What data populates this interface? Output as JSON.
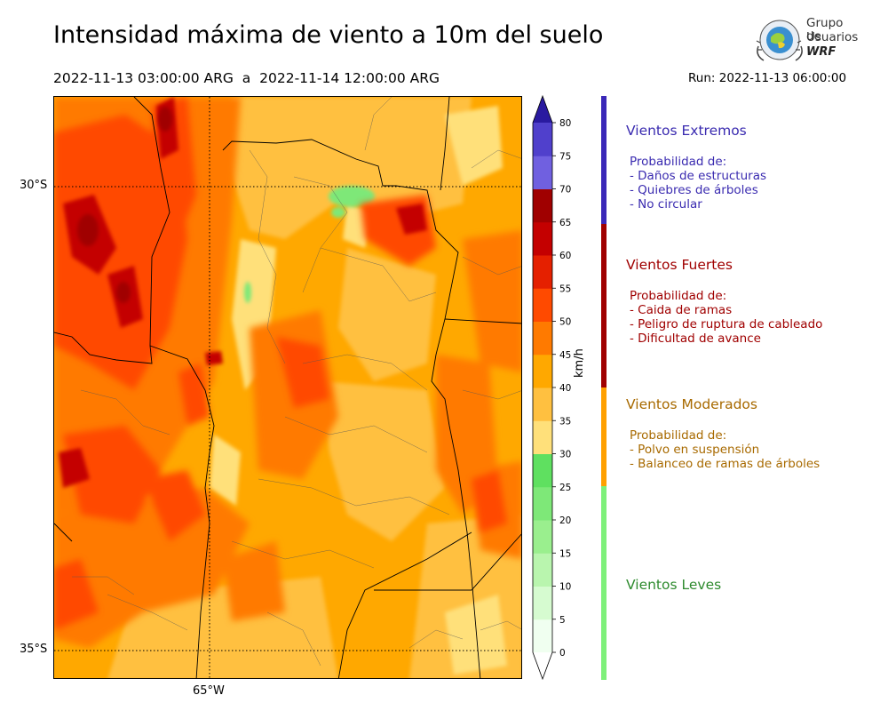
{
  "header": {
    "title": "Intensidad máxima de viento a 10m del suelo",
    "period": "2022-11-13 03:00:00 ARG  a  2022-11-14 12:00:00 ARG",
    "run": "Run: 2022-11-13 06:00:00"
  },
  "logo": {
    "line1": "Grupo de",
    "line2": "Usuarios",
    "line3": "WRF"
  },
  "map": {
    "lat_labels": [
      "30°S",
      "35°S"
    ],
    "lon_labels": [
      "65°W"
    ],
    "gridlines": {
      "lat": [
        -30,
        -35
      ],
      "lon": [
        -65
      ]
    }
  },
  "colorbar": {
    "unit": "km/h",
    "ticks": [
      "0",
      "5",
      "10",
      "15",
      "20",
      "25",
      "30",
      "35",
      "40",
      "45",
      "50",
      "55",
      "60",
      "65",
      "70",
      "75",
      "80"
    ],
    "colors": [
      "#f0fff0",
      "#d6fbd0",
      "#b9f5ae",
      "#9aef8e",
      "#7ee878",
      "#5fe060",
      "#ffe07a",
      "#ffc040",
      "#ffa800",
      "#ff7a00",
      "#ff4a00",
      "#e52000",
      "#c40000",
      "#a00000",
      "#7060e0",
      "#5040cc",
      "#3a28b8",
      "#2a1aa0"
    ]
  },
  "categories": [
    {
      "title": "Vientos Extremos",
      "color": "#3a2bb0",
      "subtitle": "Probabilidad de:",
      "items": [
        "- Daños de estructuras",
        "- Quiebres de árboles",
        "- No circular"
      ]
    },
    {
      "title": "Vientos Fuertes",
      "color": "#a00000",
      "subtitle": "Probabilidad de:",
      "items": [
        "- Caida de ramas",
        "- Peligro de ruptura de cableado",
        "- Dificultad de avance"
      ]
    },
    {
      "title": "Vientos Moderados",
      "color": "#a86a00",
      "subtitle": "Probabilidad de:",
      "items": [
        "- Polvo en suspensión",
        "- Balanceo de ramas de árboles"
      ]
    },
    {
      "title": "Vientos Leves",
      "color": "#2e8b2e",
      "subtitle": "",
      "items": []
    }
  ],
  "category_bar_colors": [
    "#3a28b8",
    "#a00000",
    "#ffa000",
    "#7ef07a"
  ]
}
